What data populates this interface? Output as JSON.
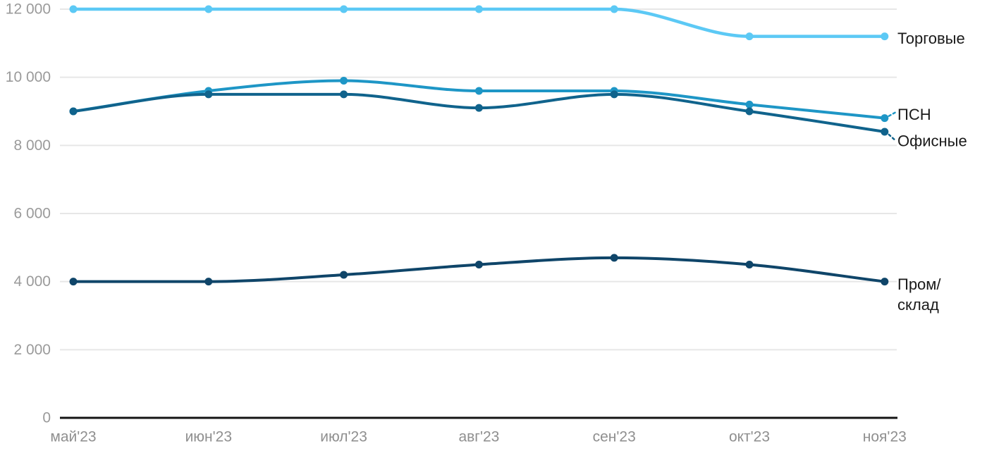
{
  "chart_data": {
    "type": "line",
    "title": "",
    "x_categories": [
      "май'23",
      "июн'23",
      "июл'23",
      "авг'23",
      "сен'23",
      "окт'23",
      "ноя'23"
    ],
    "series": [
      {
        "name": "Торговые",
        "values": [
          12000,
          12000,
          12000,
          12000,
          12000,
          11200,
          11200
        ],
        "color": "#5CC9F5",
        "label_lines": [
          "Торговые"
        ],
        "label_offset_y": 3,
        "connector": false
      },
      {
        "name": "ПСН",
        "values": [
          9000,
          9600,
          9900,
          9600,
          9600,
          9200,
          8800
        ],
        "color": "#1E96C6",
        "label_lines": [
          "ПСН"
        ],
        "label_offset_y": -5,
        "connector": true,
        "connector_dir": "up"
      },
      {
        "name": "Офисные",
        "values": [
          9000,
          9500,
          9500,
          9100,
          9500,
          9000,
          8400
        ],
        "color": "#10638C",
        "label_lines": [
          "Офисные"
        ],
        "label_offset_y": 13,
        "connector": true,
        "connector_dir": "down"
      },
      {
        "name": "Пром/склад",
        "values": [
          4000,
          4000,
          4200,
          4500,
          4700,
          4500,
          4000
        ],
        "color": "#0F4569",
        "label_lines": [
          "Пром/",
          "склад"
        ],
        "label_offset_y": 4,
        "connector": false
      }
    ],
    "ylim": [
      0,
      12000
    ],
    "yticks": [
      0,
      2000,
      4000,
      6000,
      8000,
      10000,
      12000
    ],
    "ytick_labels": [
      "0",
      "2 000",
      "4 000",
      "6 000",
      "8 000",
      "10 000",
      "12 000"
    ],
    "grid": "horizontal-only",
    "legend_position": "right-end-labels",
    "line_style": "smooth-monotone",
    "markers": "circle"
  },
  "colors": {
    "background": "#FFFFFF",
    "gridline": "#E7E7E7",
    "axis_line": "#141414",
    "ytick_text": "#9A9A9A",
    "xtick_text": "#8F8F8F",
    "series_label_text": "#1A1A1A"
  }
}
